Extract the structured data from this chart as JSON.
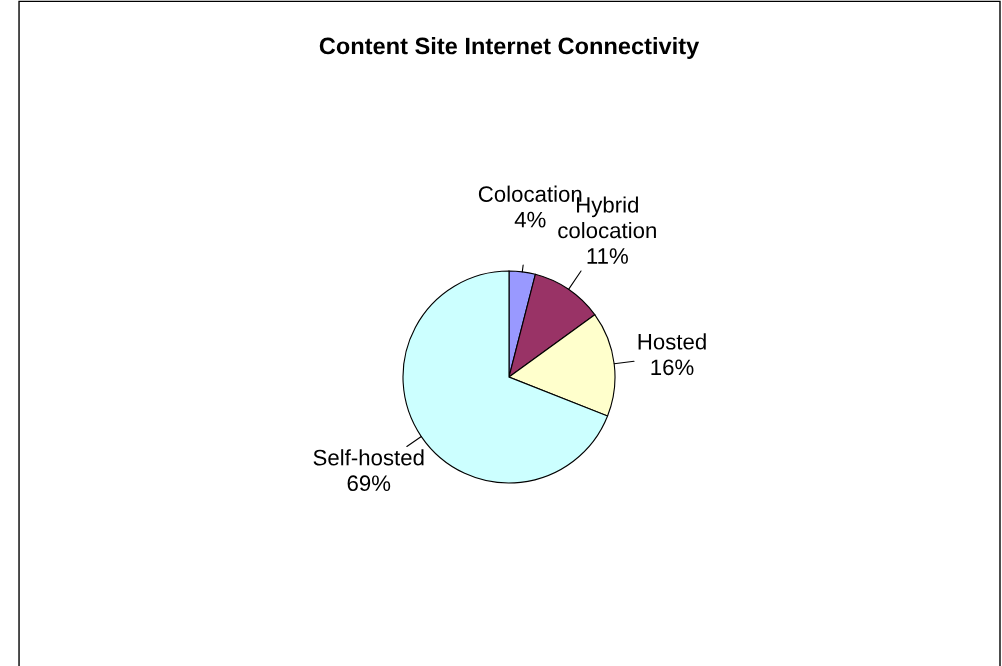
{
  "chart_data": {
    "type": "pie",
    "title": "Content Site Internet Connectivity",
    "categories": [
      "Colocation",
      "Hybrid\ncolocation",
      "Hosted",
      "Self-hosted"
    ],
    "values": [
      4,
      11,
      16,
      69
    ],
    "value_labels": [
      "4%",
      "11%",
      "16%",
      "69%"
    ],
    "colors": [
      "#9999ff",
      "#993366",
      "#ffffcc",
      "#ccffff"
    ],
    "legend": false
  }
}
